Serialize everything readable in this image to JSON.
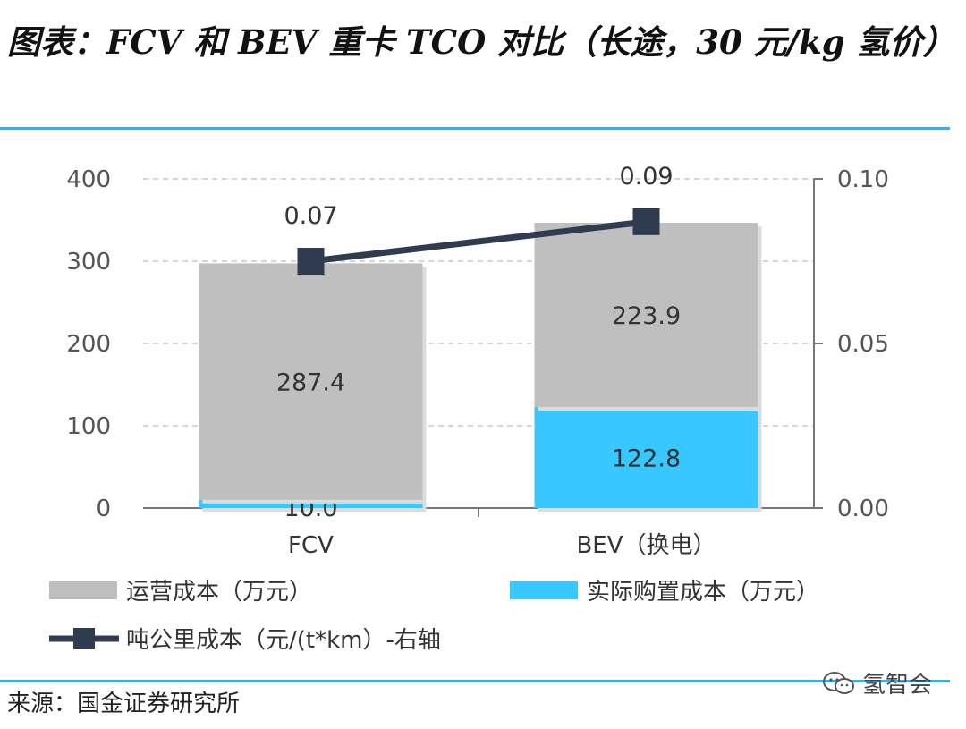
{
  "title": "图表：FCV 和 BEV 重卡 TCO 对比（长途，30 元/kg 氢价）",
  "source": "来源：国金证券研究所",
  "watermark": "氢智会",
  "colors": {
    "operating": "#bfbfbf",
    "purchase": "#38c8ff",
    "line": "#2f3c50",
    "rule": "#2fb2ee"
  },
  "chart_data": {
    "type": "bar",
    "stacked": true,
    "categories": [
      "FCV",
      "BEV（换电）"
    ],
    "series": [
      {
        "name": "实际购置成本（万元）",
        "kind": "bar",
        "values": [
          10.0,
          122.8
        ],
        "labels": [
          "10.0",
          "122.8"
        ]
      },
      {
        "name": "运营成本（万元）",
        "kind": "bar",
        "values": [
          287.4,
          223.9
        ],
        "labels": [
          "287.4",
          "223.9"
        ]
      },
      {
        "name": "吨公里成本（元/(t*km）-右轴",
        "kind": "line",
        "axis": "right",
        "values": [
          0.075,
          0.087
        ],
        "labels": [
          "0.07",
          "0.09"
        ]
      }
    ],
    "y_left": {
      "ticks": [
        "0",
        "100",
        "200",
        "300",
        "400"
      ],
      "lim": [
        0,
        400
      ]
    },
    "y_right": {
      "ticks": [
        "0.00",
        "0.05",
        "0.10"
      ],
      "lim": [
        0,
        0.1
      ]
    },
    "grid": true,
    "legend": [
      {
        "label": "运营成本（万元）",
        "kind": "bar",
        "series": 1
      },
      {
        "label": "实际购置成本（万元）",
        "kind": "bar",
        "series": 0
      },
      {
        "label": "吨公里成本（元/(t*km）-右轴",
        "kind": "line",
        "series": 2
      }
    ],
    "legend_position": "bottom"
  }
}
